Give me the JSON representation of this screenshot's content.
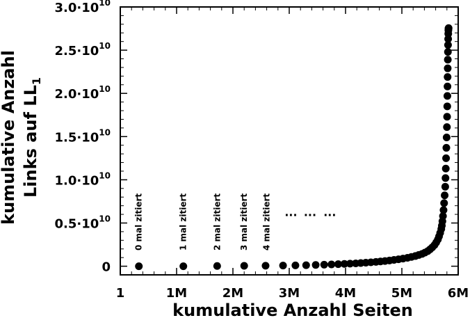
{
  "chart_data": {
    "type": "scatter",
    "xlabel": "kumulative Anzahl Seiten",
    "ylabel_line1": "kumulative Anzahl",
    "ylabel_line2_main": "Links auf LL",
    "ylabel_line2_sub": "1",
    "xlim": [
      0,
      6000000
    ],
    "ylim": [
      -1000000000,
      30000000000
    ],
    "x_ticks": [
      {
        "value": 0,
        "label": "1"
      },
      {
        "value": 1000000,
        "label": "1M"
      },
      {
        "value": 2000000,
        "label": "2M"
      },
      {
        "value": 3000000,
        "label": "3M"
      },
      {
        "value": 4000000,
        "label": "4M"
      },
      {
        "value": 5000000,
        "label": "5M"
      },
      {
        "value": 6000000,
        "label": "6M"
      }
    ],
    "y_ticks": [
      {
        "value": 0,
        "mant": "0",
        "exp": ""
      },
      {
        "value": 5000000000,
        "mant": "0.5·10",
        "exp": "10"
      },
      {
        "value": 10000000000,
        "mant": "1.0·10",
        "exp": "10"
      },
      {
        "value": 15000000000,
        "mant": "1.5·10",
        "exp": "10"
      },
      {
        "value": 20000000000,
        "mant": "2.0·10",
        "exp": "10"
      },
      {
        "value": 25000000000,
        "mant": "2.5·10",
        "exp": "10"
      },
      {
        "value": 30000000000,
        "mant": "3.0·10",
        "exp": "10"
      }
    ],
    "annotations": [
      {
        "text": "0 mal zitiert",
        "x": 330000
      },
      {
        "text": "1 mal zitiert",
        "x": 1120000
      },
      {
        "text": "2 mal zitiert",
        "x": 1720000
      },
      {
        "text": "3 mal zitiert",
        "x": 2200000
      },
      {
        "text": "4 mal zitiert",
        "x": 2600000
      }
    ],
    "ellipsis": [
      {
        "text": "...",
        "x": 3030000
      },
      {
        "text": "...",
        "x": 3370000
      },
      {
        "text": "...",
        "x": 3720000
      }
    ],
    "ellipsis_y": 5800000000,
    "points": {
      "x": [
        330000,
        1120000,
        1720000,
        2200000,
        2580000,
        2890000,
        3110000,
        3300000,
        3470000,
        3620000,
        3750000,
        3870000,
        3980000,
        4080000,
        4180000,
        4270000,
        4360000,
        4450000,
        4540000,
        4620000,
        4700000,
        4780000,
        4860000,
        4940000,
        5020000,
        5100000,
        5170000,
        5240000,
        5300000,
        5360000,
        5410000,
        5460000,
        5500000,
        5540000,
        5580000,
        5610000,
        5640000,
        5660000,
        5680000,
        5700000,
        5710000,
        5720000,
        5730000,
        5740000,
        5750000,
        5760000,
        5770000,
        5775000,
        5780000,
        5785000,
        5790000,
        5795000,
        5800000,
        5803000,
        5806000,
        5808000,
        5810000,
        5812000,
        5814000,
        5816000,
        5818000,
        5820000,
        5822000,
        5824000,
        5826000,
        5828000,
        5830000
      ],
      "y": [
        0,
        0,
        30000000,
        50000000,
        60000000,
        80000000,
        100000000,
        120000000,
        150000000,
        180000000,
        210000000,
        240000000,
        270000000,
        300000000,
        330000000,
        370000000,
        410000000,
        450000000,
        500000000,
        550000000,
        600000000,
        660000000,
        730000000,
        800000000,
        880000000,
        970000000,
        1070000000,
        1180000000,
        1300000000,
        1430000000,
        1580000000,
        1750000000,
        1950000000,
        2180000000,
        2450000000,
        2750000000,
        3100000000,
        3450000000,
        3850000000,
        4300000000,
        4700000000,
        5200000000,
        5800000000,
        6500000000,
        7300000000,
        8200000000,
        9200000000,
        10200000000,
        11300000000,
        12500000000,
        13700000000,
        14900000000,
        16100000000,
        17300000000,
        18500000000,
        19700000000,
        20800000000,
        21900000000,
        22900000000,
        23900000000,
        24800000000,
        25600000000,
        26300000000,
        26900000000,
        27300000000,
        27500000000,
        27550000000
      ]
    }
  }
}
